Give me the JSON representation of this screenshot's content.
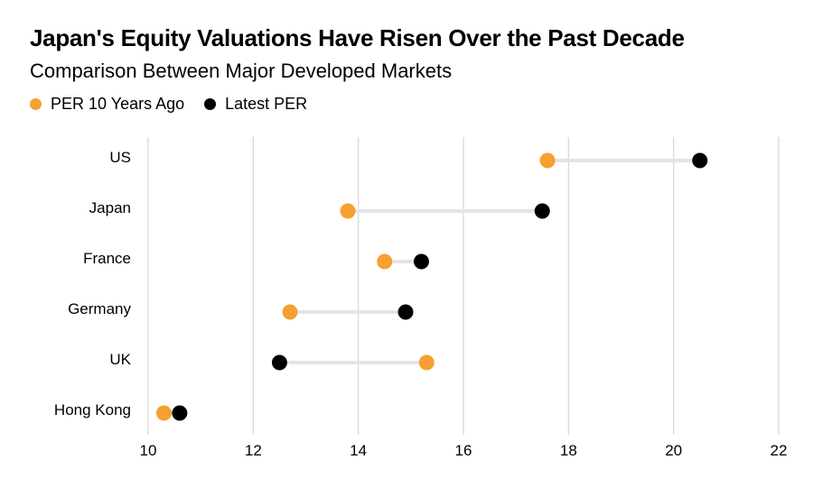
{
  "title": "Japan's Equity Valuations Have Risen Over the Past Decade",
  "subtitle": "Comparison Between Major Developed Markets",
  "chart_data": {
    "type": "dumbbell",
    "categories": [
      "US",
      "Japan",
      "France",
      "Germany",
      "UK",
      "Hong Kong"
    ],
    "series": [
      {
        "name": "PER 10 Years Ago",
        "color": "#f5a030",
        "values": [
          17.6,
          13.8,
          14.5,
          12.7,
          15.3,
          10.3
        ]
      },
      {
        "name": "Latest PER",
        "color": "#000000",
        "values": [
          20.5,
          17.5,
          15.2,
          14.9,
          12.5,
          10.6
        ]
      }
    ],
    "x_ticks": [
      10,
      12,
      14,
      16,
      18,
      20,
      22
    ],
    "xlim": [
      10,
      22
    ],
    "grid": "vertical",
    "legend_position": "top-left",
    "connector_color": "#e4e4e8",
    "grid_color": "#d9d9d9"
  }
}
